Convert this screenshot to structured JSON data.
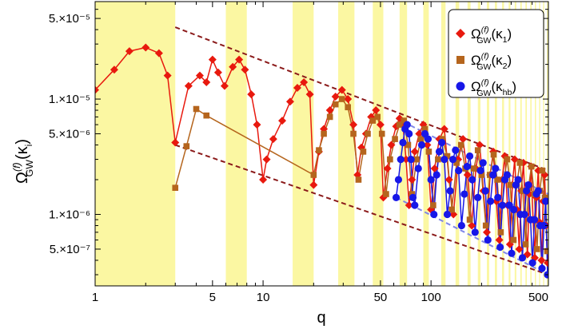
{
  "chart_data": {
    "type": "scatter",
    "title": "",
    "xlabel": "q",
    "ylabel": "Ω_GW^(f)(κ_i)",
    "xscale": "log",
    "yscale": "log",
    "xlim": [
      1,
      500
    ],
    "ylim": [
      2.4e-07,
      7e-05
    ],
    "x_ticks": [
      {
        "value": 1,
        "label": "1"
      },
      {
        "value": 5,
        "label": "5"
      },
      {
        "value": 10,
        "label": "10"
      },
      {
        "value": 50,
        "label": "50"
      },
      {
        "value": 100,
        "label": "100"
      },
      {
        "value": 500,
        "label": "500"
      }
    ],
    "y_ticks": [
      {
        "value": 5e-07,
        "label": "5.×10⁻⁷"
      },
      {
        "value": 1e-06,
        "label": "1.×10⁻⁶"
      },
      {
        "value": 5e-06,
        "label": "5.×10⁻⁶"
      },
      {
        "value": 1e-05,
        "label": "1.×10⁻⁵"
      },
      {
        "value": 5e-05,
        "label": "5.×10⁻⁵"
      }
    ],
    "grid": false,
    "legend_position": "top-right",
    "shaded_bands_color": "#fbf7a2",
    "shaded_bands": [
      [
        1,
        3
      ],
      [
        6,
        8
      ],
      [
        15,
        20
      ],
      [
        28,
        35
      ],
      [
        45,
        52
      ],
      [
        65,
        72
      ],
      [
        90,
        97
      ],
      [
        115,
        122
      ],
      [
        140,
        147
      ],
      [
        165,
        172
      ],
      [
        190,
        197
      ],
      [
        215,
        222
      ],
      [
        240,
        247
      ],
      [
        265,
        272
      ],
      [
        290,
        297
      ],
      [
        315,
        322
      ],
      [
        340,
        347
      ],
      [
        365,
        372
      ],
      [
        390,
        397
      ],
      [
        415,
        422
      ],
      [
        440,
        447
      ],
      [
        465,
        472
      ],
      [
        490,
        497
      ]
    ],
    "envelopes": [
      {
        "color": "#8b1a1a",
        "x": [
          3,
          500
        ],
        "y": [
          4.2e-05,
          2.4e-06
        ]
      },
      {
        "color": "#8b1a1a",
        "x": [
          3,
          500
        ],
        "y": [
          4e-06,
          3e-07
        ]
      },
      {
        "color": "#7f86e8",
        "x": [
          62,
          500
        ],
        "y": [
          6.8e-06,
          1.5e-06
        ]
      },
      {
        "color": "#7f86e8",
        "x": [
          62,
          500
        ],
        "y": [
          1.4e-06,
          3e-07
        ]
      }
    ],
    "series": [
      {
        "name": "Ω_GW^(f)(κ_1)",
        "color": "#e8190e",
        "marker": "diamond",
        "x": [
          1,
          1.3,
          1.6,
          2,
          2.4,
          2.7,
          3,
          3.6,
          4.2,
          4.6,
          5,
          5.4,
          5.9,
          6.6,
          7.2,
          7.8,
          8.5,
          9.2,
          10,
          10.5,
          11.5,
          13,
          14.5,
          16,
          17.5,
          19,
          20,
          21.5,
          23,
          25,
          27,
          29.5,
          32,
          34.5,
          36.5,
          38.5,
          41,
          44,
          47,
          50,
          52,
          55,
          58,
          62,
          65,
          68,
          71,
          74,
          77,
          80,
          85,
          90,
          95,
          100,
          105,
          112,
          120,
          128,
          136,
          145,
          155,
          165,
          175,
          185,
          195,
          205,
          215,
          225,
          235,
          245,
          255,
          265,
          275,
          285,
          295,
          305,
          315,
          325,
          335,
          345,
          355,
          365,
          375,
          385,
          395,
          405,
          415,
          425,
          435,
          445,
          455,
          465,
          475,
          485,
          495
        ],
        "y": [
          1.2e-05,
          1.8e-05,
          2.6e-05,
          2.8e-05,
          2.5e-05,
          1.6e-05,
          4.2e-06,
          1.3e-05,
          1.6e-05,
          1.4e-05,
          2.2e-05,
          1.7e-05,
          1.3e-05,
          1.9e-05,
          2.2e-05,
          1.8e-05,
          1.1e-05,
          6e-06,
          2e-06,
          3e-06,
          4.5e-06,
          6.5e-06,
          9.5e-06,
          1.25e-05,
          1.4e-05,
          1.1e-05,
          1.8e-06,
          3.5e-06,
          5.5e-06,
          8e-06,
          1.05e-05,
          1.2e-05,
          1e-05,
          6e-06,
          2.2e-06,
          3.8e-06,
          5e-06,
          7e-06,
          8e-06,
          6e-06,
          1.4e-06,
          2.5e-06,
          4e-06,
          5.8e-06,
          6.8e-06,
          6e-06,
          3e-06,
          1.2e-06,
          2e-06,
          3.5e-06,
          5e-06,
          6e-06,
          4e-06,
          1.1e-06,
          2.5e-06,
          4.5e-06,
          5.5e-06,
          2e-06,
          1e-06,
          3e-06,
          4.5e-06,
          2.2e-06,
          8e-07,
          2.5e-06,
          4e-06,
          1.6e-06,
          7e-07,
          2.2e-06,
          3.5e-06,
          1.3e-06,
          6e-07,
          2e-06,
          3.2e-06,
          1.2e-06,
          5.5e-07,
          1.8e-06,
          3e-06,
          1.1e-06,
          5e-07,
          1.6e-06,
          2.8e-06,
          1e-06,
          4.5e-07,
          1.5e-06,
          2.6e-06,
          9e-07,
          4.2e-07,
          1.4e-06,
          2.4e-06,
          8.5e-07,
          4e-07,
          1.3e-06,
          2.2e-06,
          8e-07,
          3.8e-07
        ]
      },
      {
        "name": "Ω_GW^(f)(κ_2)",
        "color": "#b5651d",
        "marker": "square",
        "x": [
          3,
          3.5,
          4,
          4.6,
          20,
          21.5,
          23,
          25,
          27,
          29.5,
          32,
          34.5,
          37,
          39.5,
          42,
          45,
          48,
          51,
          54,
          57,
          61,
          65,
          69,
          73,
          77,
          82,
          87,
          92,
          97,
          103,
          110,
          117,
          125,
          133,
          142,
          151,
          160,
          170,
          180,
          190,
          200,
          212,
          224,
          236,
          248,
          260,
          272,
          284,
          296,
          310,
          324,
          338,
          352,
          366,
          380,
          396,
          412,
          428,
          444,
          460,
          476,
          492
        ],
        "y": [
          1.7e-06,
          3.9e-06,
          8.2e-06,
          7.2e-06,
          2.2e-06,
          3.6e-06,
          5e-06,
          7e-06,
          9e-06,
          1e-05,
          8.5e-06,
          5e-06,
          2e-06,
          3.5e-06,
          5e-06,
          6.5e-06,
          7e-06,
          5e-06,
          1.5e-06,
          3e-06,
          4.5e-06,
          6e-06,
          6.5e-06,
          4e-06,
          1.5e-06,
          3e-06,
          4.5e-06,
          5.5e-06,
          3.5e-06,
          1.2e-06,
          3e-06,
          4.5e-06,
          3.2e-06,
          1.1e-06,
          2.8e-06,
          4e-06,
          2.5e-06,
          9e-07,
          2.5e-06,
          3.6e-06,
          2.2e-06,
          8e-07,
          2.2e-06,
          3.3e-06,
          2e-06,
          7e-07,
          2e-06,
          3e-06,
          1.8e-06,
          6e-07,
          1.8e-06,
          2.8e-06,
          1.6e-06,
          5.5e-07,
          1.7e-06,
          2.6e-06,
          1.5e-06,
          5e-07,
          1.6e-06,
          2.4e-06,
          1.4e-06,
          4.8e-07
        ]
      },
      {
        "name": "Ω_GW^(f)(κ_hb)",
        "color": "#1717e8",
        "marker": "circle",
        "x": [
          62,
          64,
          66,
          68,
          70,
          72,
          74,
          76,
          78,
          80,
          84,
          88,
          92,
          96,
          100,
          104,
          108,
          112,
          116,
          120,
          125,
          130,
          135,
          140,
          146,
          152,
          158,
          164,
          170,
          176,
          183,
          190,
          197,
          204,
          211,
          218,
          226,
          234,
          242,
          250,
          258,
          266,
          275,
          284,
          293,
          302,
          311,
          320,
          330,
          340,
          350,
          360,
          370,
          380,
          391,
          402,
          413,
          424,
          435,
          446,
          458,
          470,
          482,
          494
        ],
        "y": [
          1.4e-06,
          2e-06,
          3e-06,
          4.2e-06,
          5.5e-06,
          6e-06,
          5e-06,
          3e-06,
          1.4e-06,
          1.2e-06,
          2.5e-06,
          4e-06,
          5e-06,
          4.5e-06,
          2e-06,
          1e-06,
          2.2e-06,
          3.5e-06,
          4.2e-06,
          3e-06,
          1e-06,
          1.6e-06,
          3e-06,
          3.6e-06,
          2.4e-06,
          8e-07,
          1.5e-06,
          2.6e-06,
          3.2e-06,
          2e-06,
          7e-07,
          1.4e-06,
          2.4e-06,
          2.8e-06,
          1.6e-06,
          6e-07,
          1.3e-06,
          2.2e-06,
          2.5e-06,
          1.4e-06,
          5.2e-07,
          1.2e-06,
          2e-06,
          2.2e-06,
          1.2e-06,
          4.6e-07,
          1.1e-06,
          1.8e-06,
          2e-06,
          1e-06,
          4.2e-07,
          1e-06,
          1.6e-06,
          1.8e-06,
          9e-07,
          3.8e-07,
          9e-07,
          1.5e-06,
          1.6e-06,
          8e-07,
          3.4e-07,
          8e-07,
          1.3e-06,
          3e-07
        ]
      }
    ],
    "legend": [
      {
        "base": "Ω",
        "sup": "(f)",
        "sub": "GW",
        "arg_open": "(κ",
        "arg_sub": "1",
        "arg_close": ")"
      },
      {
        "base": "Ω",
        "sup": "(f)",
        "sub": "GW",
        "arg_open": "(κ",
        "arg_sub": "2",
        "arg_close": ")"
      },
      {
        "base": "Ω",
        "sup": "(f)",
        "sub": "GW",
        "arg_open": "(κ",
        "arg_sub": "hb",
        "arg_close": ")"
      }
    ],
    "ylabel_parts": {
      "base": "Ω",
      "sup": "(f)",
      "sub": "GW",
      "arg_open": "(κ",
      "arg_sub": "i",
      "arg_close": ")"
    }
  }
}
